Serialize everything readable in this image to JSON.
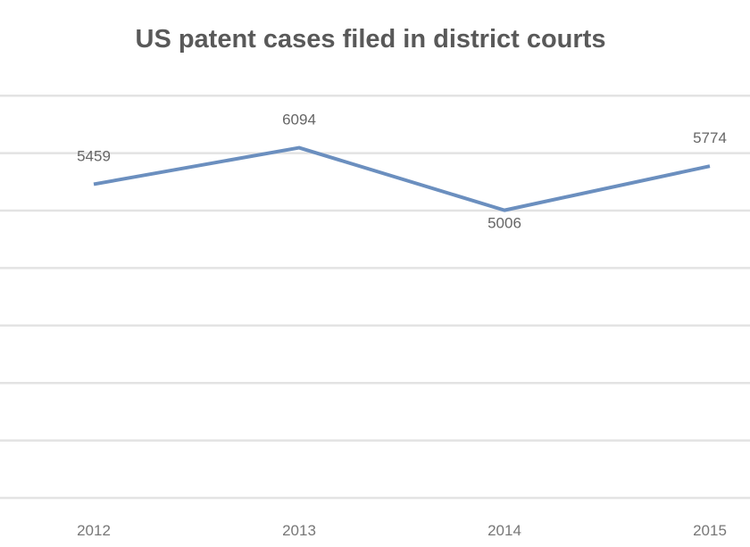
{
  "chart_data": {
    "type": "line",
    "title": "US patent cases filed in district courts",
    "categories": [
      "2012",
      "2013",
      "2014",
      "2015"
    ],
    "series": [
      {
        "values": [
          5459,
          6094,
          5006,
          5774
        ],
        "color": "#6b8fbf"
      }
    ],
    "data_labels": [
      "5459",
      "6094",
      "5006",
      "5774"
    ],
    "ylim": [
      0,
      7000
    ],
    "ytick_step": 1000,
    "grid": true,
    "legend": "none"
  }
}
